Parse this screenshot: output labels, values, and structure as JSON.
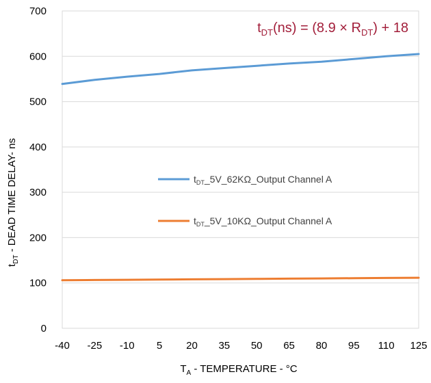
{
  "chart_data": {
    "type": "line",
    "xlabel": {
      "main": "T",
      "sub": "A",
      "rest": " - TEMPERATURE - °C"
    },
    "ylabel": {
      "main": "t",
      "sub": "DT",
      "rest": " - DEAD TIME DELAY- ns"
    },
    "x": [
      -40,
      -25,
      -10,
      5,
      20,
      35,
      50,
      65,
      80,
      95,
      110,
      125
    ],
    "x_tick_labels": [
      "-40",
      "-25",
      "-10",
      "5",
      "20",
      "35",
      "50",
      "65",
      "80",
      "95",
      "110",
      "125"
    ],
    "xlim": [
      -40,
      125
    ],
    "ylim": [
      0,
      700
    ],
    "y_ticks": [
      0,
      100,
      200,
      300,
      400,
      500,
      600,
      700
    ],
    "grid": "horizontal",
    "legend_position": "center-right",
    "annotation": {
      "color": "#A21E3A",
      "parts": [
        {
          "t": "t",
          "sub": false
        },
        {
          "t": "DT",
          "sub": true
        },
        {
          "t": "(ns) = (8.9 × R",
          "sub": false
        },
        {
          "t": "DT",
          "sub": true
        },
        {
          "t": ") + 18",
          "sub": false
        }
      ]
    },
    "series": [
      {
        "name": {
          "main": "t",
          "sub": "DT",
          "rest": "_5V_62KΩ_Output Channel A"
        },
        "color": "#5B9BD5",
        "values": [
          539,
          548,
          555,
          561,
          569,
          574,
          579,
          584,
          588,
          594,
          600,
          605
        ]
      },
      {
        "name": {
          "main": "t",
          "sub": "DT",
          "rest": "_5V_10KΩ_Output Channel A"
        },
        "color": "#ED7D31",
        "values": [
          106,
          106.5,
          107,
          107.5,
          108,
          108.5,
          109,
          109.5,
          110,
          110.5,
          111,
          111.5
        ]
      }
    ]
  }
}
